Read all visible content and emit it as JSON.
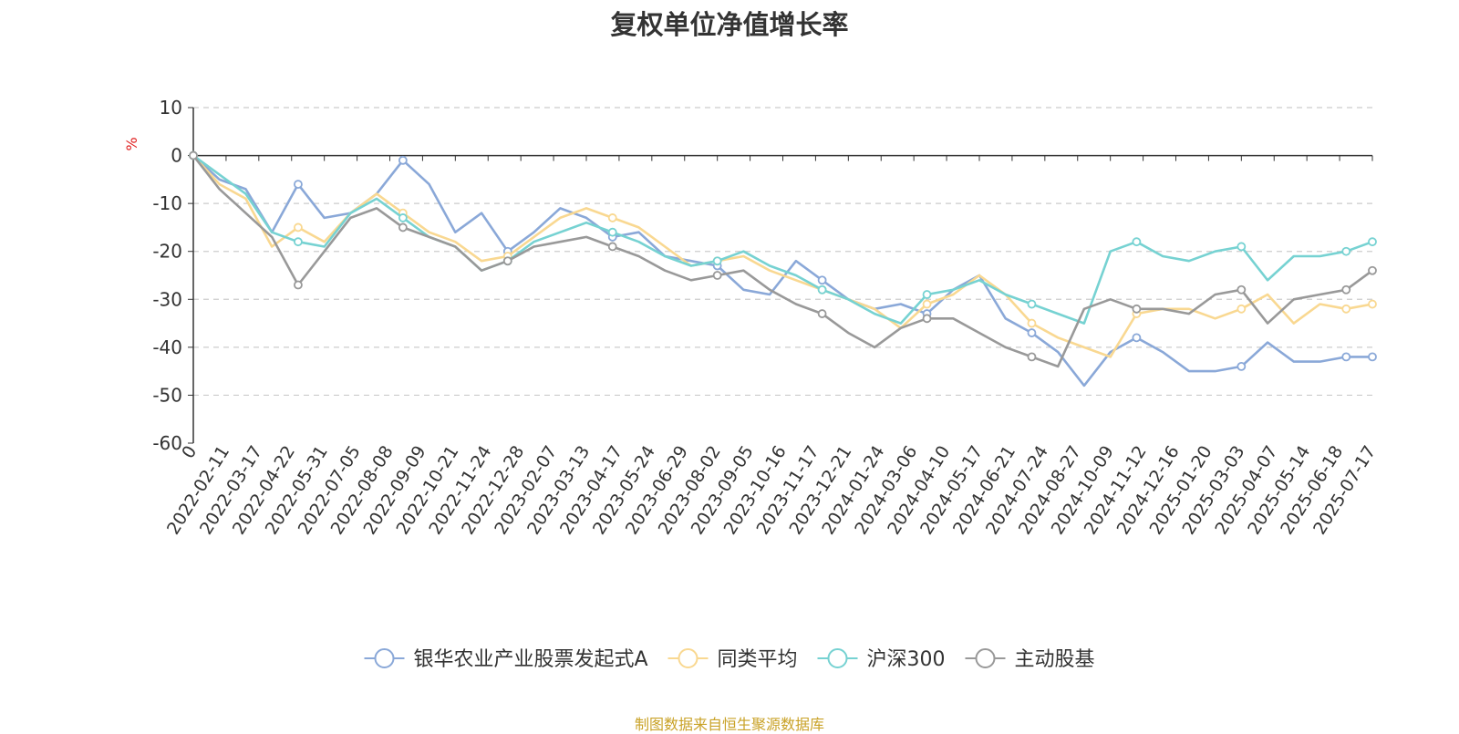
{
  "chart_data": {
    "type": "line",
    "title": "复权单位净值增长率",
    "ylabel": "%",
    "xlabel": "",
    "ylim": [
      -60,
      10
    ],
    "yticks": [
      10,
      0,
      -10,
      -20,
      -30,
      -40,
      -50,
      -60
    ],
    "grid": "horizontal dashed",
    "legend_position": "bottom",
    "x_tick_labels": [
      "0",
      "2022-02-11",
      "2022-03-17",
      "2022-04-22",
      "2022-05-31",
      "2022-07-05",
      "2022-08-08",
      "2022-09-09",
      "2022-10-21",
      "2022-11-24",
      "2022-12-28",
      "2023-02-07",
      "2023-03-13",
      "2023-04-17",
      "2023-05-24",
      "2023-06-29",
      "2023-08-02",
      "2023-09-05",
      "2023-10-16",
      "2023-11-17",
      "2023-12-21",
      "2024-01-24",
      "2024-03-06",
      "2024-04-10",
      "2024-05-17",
      "2024-06-21",
      "2024-07-24",
      "2024-08-27",
      "2024-10-09",
      "2024-11-12",
      "2024-12-16",
      "2025-01-20",
      "2025-03-03",
      "2025-04-07",
      "2025-05-14",
      "2025-06-18",
      "2025-07-17"
    ],
    "series": [
      {
        "name": "银华农业产业股票发起式A",
        "color": "#8aa8d8",
        "values": [
          0,
          -5,
          -7,
          -16,
          -6,
          -13,
          -12,
          -8,
          -1,
          -6,
          -16,
          -12,
          -20,
          -16,
          -11,
          -13,
          -17,
          -16,
          -21,
          -22,
          -23,
          -28,
          -29,
          -22,
          -26,
          -30,
          -32,
          -31,
          -33,
          -28,
          -25,
          -34,
          -37,
          -41,
          -48,
          -41,
          -38,
          -41,
          -45,
          -45,
          -44,
          -39,
          -43,
          -43,
          -42,
          -42
        ]
      },
      {
        "name": "同类平均",
        "color": "#f9d891",
        "values": [
          0,
          -6,
          -9,
          -19,
          -15,
          -18,
          -12,
          -8,
          -12,
          -16,
          -18,
          -22,
          -21,
          -17,
          -13,
          -11,
          -13,
          -15,
          -19,
          -23,
          -22,
          -21,
          -24,
          -26,
          -28,
          -30,
          -32,
          -36,
          -31,
          -29,
          -25,
          -29,
          -35,
          -38,
          -40,
          -42,
          -33,
          -32,
          -32,
          -34,
          -32,
          -29,
          -35,
          -31,
          -32,
          -31
        ]
      },
      {
        "name": "沪深300",
        "color": "#76d2d2",
        "values": [
          0,
          -4,
          -8,
          -16,
          -18,
          -19,
          -12,
          -9,
          -13,
          -17,
          -19,
          -24,
          -22,
          -18,
          -16,
          -14,
          -16,
          -18,
          -21,
          -23,
          -22,
          -20,
          -23,
          -25,
          -28,
          -30,
          -33,
          -35,
          -29,
          -28,
          -26,
          -29,
          -31,
          -33,
          -35,
          -20,
          -18,
          -21,
          -22,
          -20,
          -19,
          -26,
          -21,
          -21,
          -20,
          -18
        ]
      },
      {
        "name": "主动股基",
        "color": "#999999",
        "values": [
          0,
          -7,
          -12,
          -17,
          -27,
          -20,
          -13,
          -11,
          -15,
          -17,
          -19,
          -24,
          -22,
          -19,
          -18,
          -17,
          -19,
          -21,
          -24,
          -26,
          -25,
          -24,
          -28,
          -31,
          -33,
          -37,
          -40,
          -36,
          -34,
          -34,
          -37,
          -40,
          -42,
          -44,
          -32,
          -30,
          -32,
          -32,
          -33,
          -29,
          -28,
          -35,
          -30,
          -29,
          -28,
          -24
        ]
      }
    ]
  },
  "footer": {
    "source": "制图数据来自恒生聚源数据库"
  }
}
